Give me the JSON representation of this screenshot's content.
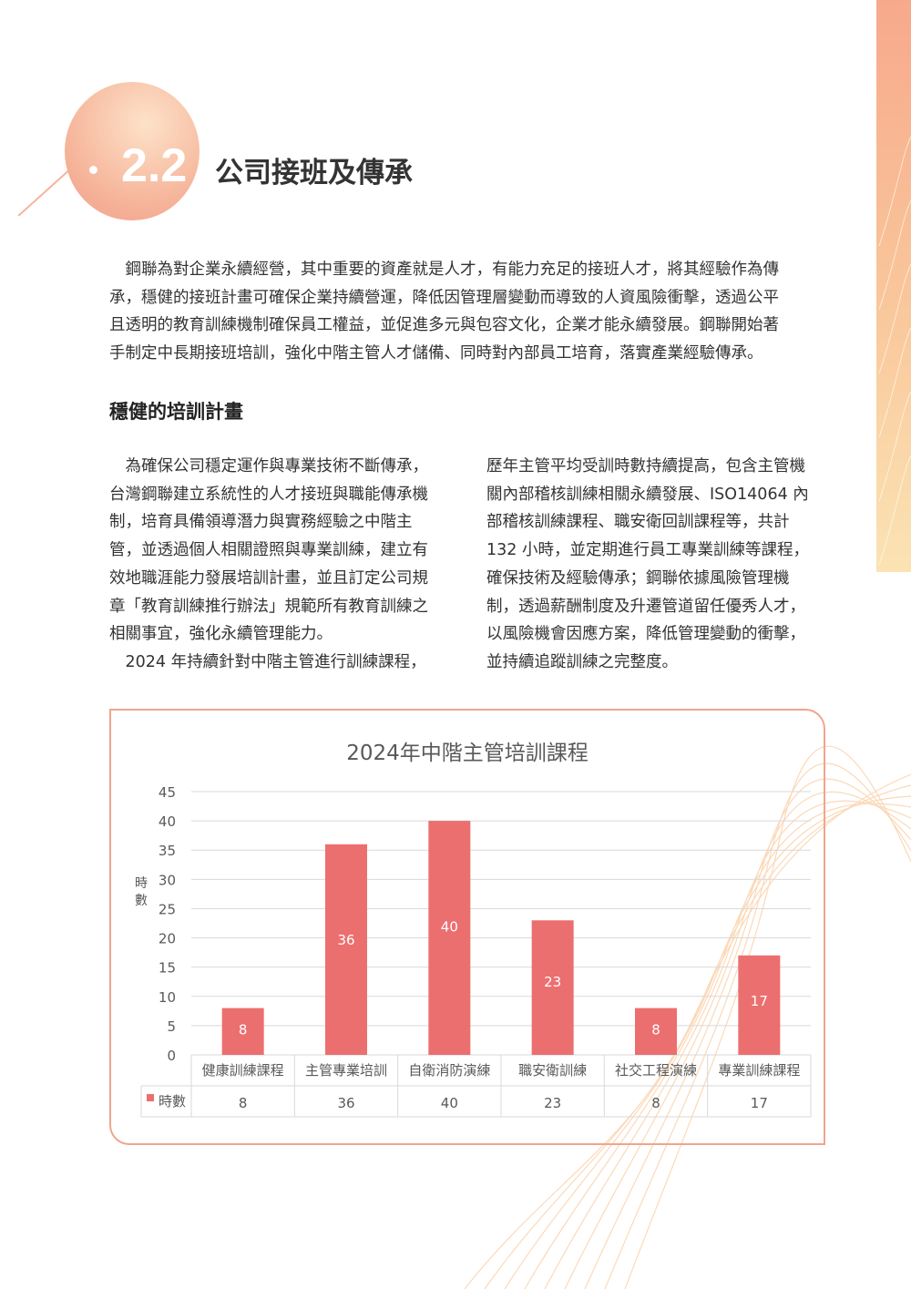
{
  "section": {
    "number": "2.2",
    "title": "公司接班及傳承"
  },
  "intro_lines": [
    "　鋼聯為對企業永續經營，其中重要的資產就是人才，有能力充足的接班人才，將其經驗作為傳",
    "承，穩健的接班計畫可確保企業持續營運，降低因管理層變動而導致的人資風險衝擊，透過公平",
    "且透明的教育訓練機制確保員工權益，並促進多元與包容文化，企業才能永續發展。鋼聯開始著",
    "手制定中長期接班培訓，強化中階主管人才儲備、同時對內部員工培育，落實產業經驗傳承。"
  ],
  "subheading": "穩健的培訓計畫",
  "left_lines": [
    "　為確保公司穩定運作與專業技術不斷傳承，",
    "台灣鋼聯建立系統性的人才接班與職能傳承機",
    "制，培育具備領導潛力與實務經驗之中階主",
    "管，並透過個人相關證照與專業訓練，建立有",
    "效地職涯能力發展培訓計畫，並且訂定公司規",
    "章「教育訓練推行辦法」規範所有教育訓練之",
    "相關事宜，強化永續管理能力。",
    "　2024 年持續針對中階主管進行訓練課程，"
  ],
  "right_lines": [
    "歷年主管平均受訓時數持續提高，包含主管機",
    "關內部稽核訓練相關永續發展、ISO14064 內",
    "部稽核訓練課程、職安衛回訓課程等，共計",
    "132 小時，並定期進行員工專業訓練等課程，",
    "確保技術及經驗傳承；鋼聯依據風險管理機",
    "制，透過薪酬制度及升遷管道留任優秀人才，",
    "以風險機會因應方案，降低管理變動的衝擊，",
    "並持續追蹤訓練之完整度。"
  ],
  "chart_data": {
    "type": "bar",
    "title": "2024年中階主管培訓課程",
    "ylabel": "時數",
    "ylim": [
      0,
      45
    ],
    "yticks": [
      "0",
      "5",
      "10",
      "15",
      "20",
      "25",
      "30",
      "35",
      "40",
      "45"
    ],
    "categories": [
      "健康訓練課程",
      "主管專業培訓",
      "自衛消防演練",
      "職安衛訓練",
      "社交工程演練",
      "專業訓練課程"
    ],
    "series": [
      {
        "name": "時數",
        "values": [
          8,
          36,
          40,
          23,
          8,
          17
        ],
        "color": "#ec6f6f"
      }
    ],
    "grid": true,
    "data_table": true
  }
}
